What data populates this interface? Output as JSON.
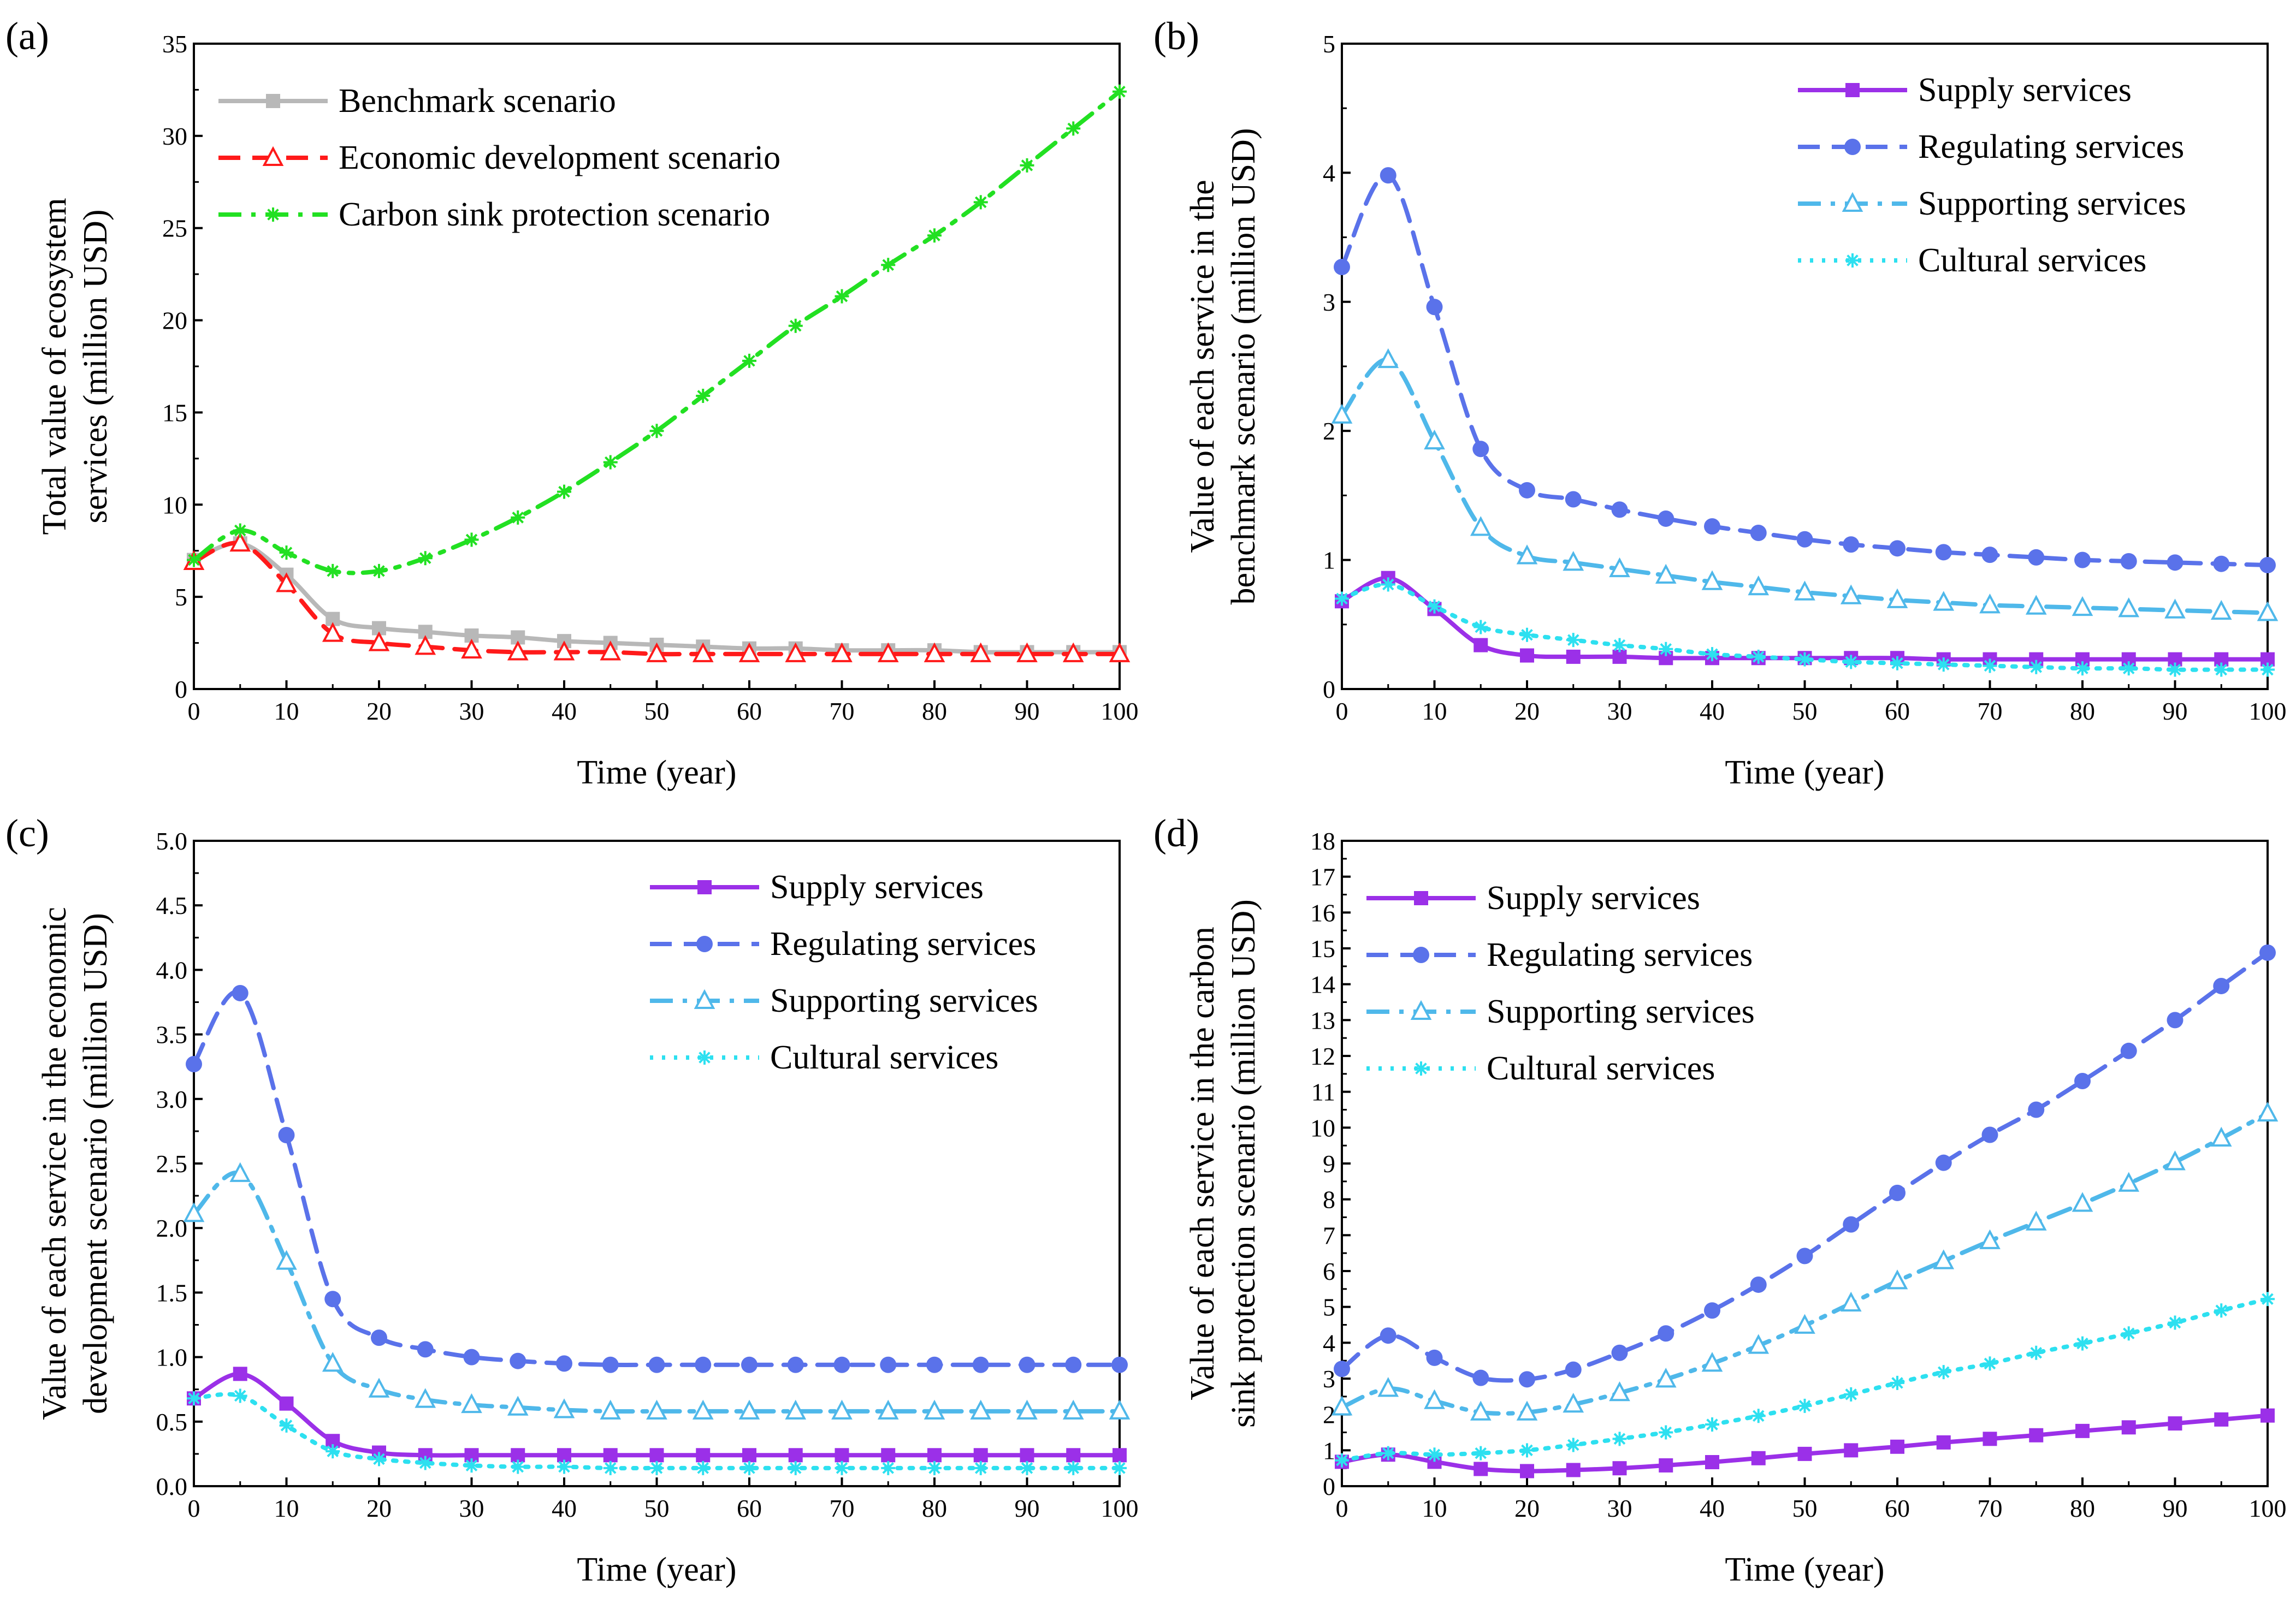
{
  "chart_data": [
    {
      "id": "a",
      "type": "line",
      "panel_label": "(a)",
      "xlabel": "Time (year)",
      "ylabel": [
        "Total value of ecosystem",
        "services (million USD)"
      ],
      "xlim": [
        0,
        100
      ],
      "ylim": [
        0,
        35
      ],
      "xticks": [
        0,
        10,
        20,
        30,
        40,
        50,
        60,
        70,
        80,
        90,
        100
      ],
      "yticks": [
        0,
        5,
        10,
        15,
        20,
        25,
        30,
        35
      ],
      "ytick_decimals": 0,
      "legend_position": "top-left",
      "x": [
        0,
        5,
        10,
        15,
        20,
        25,
        30,
        35,
        40,
        45,
        50,
        55,
        60,
        65,
        70,
        75,
        80,
        85,
        90,
        95,
        100
      ],
      "series": [
        {
          "name": "Benchmark scenario",
          "color": "#b8b8b8",
          "marker": "square",
          "dash": "solid",
          "values": [
            7.0,
            7.9,
            6.2,
            3.8,
            3.3,
            3.1,
            2.9,
            2.8,
            2.6,
            2.5,
            2.4,
            2.3,
            2.2,
            2.2,
            2.1,
            2.1,
            2.1,
            2.0,
            2.0,
            2.0,
            2.0
          ]
        },
        {
          "name": "Economic development scenario",
          "color": "#ff1a1a",
          "marker": "triangle-open",
          "dash": "dash",
          "values": [
            6.9,
            7.9,
            5.7,
            3.0,
            2.5,
            2.3,
            2.1,
            2.0,
            2.0,
            2.0,
            1.9,
            1.9,
            1.9,
            1.9,
            1.9,
            1.9,
            1.9,
            1.9,
            1.9,
            1.9,
            1.9
          ]
        },
        {
          "name": "Carbon sink protection scenario",
          "color": "#22e022",
          "marker": "asterisk",
          "dash": "dashdot",
          "values": [
            7.0,
            8.6,
            7.4,
            6.4,
            6.4,
            7.1,
            8.1,
            9.3,
            10.7,
            12.3,
            14.0,
            15.9,
            17.8,
            19.7,
            21.3,
            23.0,
            24.6,
            26.4,
            28.4,
            30.4,
            32.4
          ]
        }
      ]
    },
    {
      "id": "b",
      "type": "line",
      "panel_label": "(b)",
      "xlabel": "Time (year)",
      "ylabel": [
        "Value of each service in the",
        "benchmark scenario (million USD)"
      ],
      "xlim": [
        0,
        100
      ],
      "ylim": [
        0,
        5
      ],
      "xticks": [
        0,
        10,
        20,
        30,
        40,
        50,
        60,
        70,
        80,
        90,
        100
      ],
      "yticks": [
        0,
        1,
        2,
        3,
        4,
        5
      ],
      "ytick_decimals": 0,
      "legend_position": "top-right",
      "x": [
        0,
        5,
        10,
        15,
        20,
        25,
        30,
        35,
        40,
        45,
        50,
        55,
        60,
        65,
        70,
        75,
        80,
        85,
        90,
        95,
        100
      ],
      "series": [
        {
          "name": "Supply services",
          "color": "#9b30e8",
          "marker": "square",
          "dash": "solid",
          "values": [
            0.68,
            0.86,
            0.62,
            0.34,
            0.26,
            0.25,
            0.25,
            0.24,
            0.24,
            0.24,
            0.24,
            0.24,
            0.24,
            0.23,
            0.23,
            0.23,
            0.23,
            0.23,
            0.23,
            0.23,
            0.23
          ]
        },
        {
          "name": "Regulating services",
          "color": "#5a72ea",
          "marker": "circle",
          "dash": "dash",
          "values": [
            3.27,
            3.98,
            2.96,
            1.86,
            1.54,
            1.47,
            1.39,
            1.32,
            1.26,
            1.21,
            1.16,
            1.12,
            1.09,
            1.06,
            1.04,
            1.02,
            1.0,
            0.99,
            0.98,
            0.97,
            0.96
          ]
        },
        {
          "name": "Supporting services",
          "color": "#4fb8ea",
          "marker": "triangle-open",
          "dash": "dashdot",
          "values": [
            2.12,
            2.55,
            1.92,
            1.25,
            1.03,
            0.98,
            0.93,
            0.88,
            0.83,
            0.79,
            0.75,
            0.72,
            0.69,
            0.67,
            0.65,
            0.64,
            0.63,
            0.62,
            0.61,
            0.6,
            0.59
          ]
        },
        {
          "name": "Cultural services",
          "color": "#2de0f0",
          "marker": "asterisk",
          "dash": "dot",
          "values": [
            0.7,
            0.81,
            0.64,
            0.48,
            0.42,
            0.38,
            0.34,
            0.31,
            0.27,
            0.25,
            0.23,
            0.21,
            0.2,
            0.19,
            0.18,
            0.17,
            0.16,
            0.16,
            0.15,
            0.15,
            0.15
          ]
        }
      ]
    },
    {
      "id": "c",
      "type": "line",
      "panel_label": "(c)",
      "xlabel": "Time (year)",
      "ylabel": [
        "Value of each service in the economic",
        "development scenario (million USD)"
      ],
      "xlim": [
        0,
        100
      ],
      "ylim": [
        0,
        5
      ],
      "xticks": [
        0,
        10,
        20,
        30,
        40,
        50,
        60,
        70,
        80,
        90,
        100
      ],
      "yticks": [
        0,
        0.5,
        1.0,
        1.5,
        2.0,
        2.5,
        3.0,
        3.5,
        4.0,
        4.5,
        5.0
      ],
      "ytick_decimals": 1,
      "legend_position": "top-right",
      "x": [
        0,
        5,
        10,
        15,
        20,
        25,
        30,
        35,
        40,
        45,
        50,
        55,
        60,
        65,
        70,
        75,
        80,
        85,
        90,
        95,
        100
      ],
      "series": [
        {
          "name": "Supply services",
          "color": "#9b30e8",
          "marker": "square",
          "dash": "solid",
          "values": [
            0.68,
            0.87,
            0.64,
            0.35,
            0.26,
            0.24,
            0.24,
            0.24,
            0.24,
            0.24,
            0.24,
            0.24,
            0.24,
            0.24,
            0.24,
            0.24,
            0.24,
            0.24,
            0.24,
            0.24,
            0.24
          ]
        },
        {
          "name": "Regulating services",
          "color": "#5a72ea",
          "marker": "circle",
          "dash": "dash",
          "values": [
            3.27,
            3.82,
            2.72,
            1.45,
            1.15,
            1.06,
            1.0,
            0.97,
            0.95,
            0.94,
            0.94,
            0.94,
            0.94,
            0.94,
            0.94,
            0.94,
            0.94,
            0.94,
            0.94,
            0.94,
            0.94
          ]
        },
        {
          "name": "Supporting services",
          "color": "#4fb8ea",
          "marker": "triangle-open",
          "dash": "dashdot",
          "values": [
            2.11,
            2.42,
            1.74,
            0.95,
            0.75,
            0.67,
            0.63,
            0.61,
            0.59,
            0.58,
            0.58,
            0.58,
            0.58,
            0.58,
            0.58,
            0.58,
            0.58,
            0.58,
            0.58,
            0.58,
            0.58
          ]
        },
        {
          "name": "Cultural services",
          "color": "#2de0f0",
          "marker": "asterisk",
          "dash": "dot",
          "values": [
            0.68,
            0.7,
            0.47,
            0.27,
            0.21,
            0.18,
            0.16,
            0.15,
            0.15,
            0.14,
            0.14,
            0.14,
            0.14,
            0.14,
            0.14,
            0.14,
            0.14,
            0.14,
            0.14,
            0.14,
            0.14
          ]
        }
      ]
    },
    {
      "id": "d",
      "type": "line",
      "panel_label": "(d)",
      "xlabel": "Time (year)",
      "ylabel": [
        "Value of each service in the carbon",
        "sink protection scenario (million USD)"
      ],
      "xlim": [
        0,
        100
      ],
      "ylim": [
        0,
        18
      ],
      "xticks": [
        0,
        10,
        20,
        30,
        40,
        50,
        60,
        70,
        80,
        90,
        100
      ],
      "yticks": [
        0,
        1,
        2,
        3,
        4,
        5,
        6,
        7,
        8,
        9,
        10,
        11,
        12,
        13,
        14,
        15,
        16,
        17,
        18
      ],
      "ytick_decimals": 0,
      "legend_position": "top-left",
      "x": [
        0,
        5,
        10,
        15,
        20,
        25,
        30,
        35,
        40,
        45,
        50,
        55,
        60,
        65,
        70,
        75,
        80,
        85,
        90,
        95,
        100
      ],
      "series": [
        {
          "name": "Supply services",
          "color": "#9b30e8",
          "marker": "square",
          "dash": "solid",
          "values": [
            0.68,
            0.88,
            0.68,
            0.48,
            0.42,
            0.45,
            0.5,
            0.58,
            0.67,
            0.78,
            0.9,
            1.0,
            1.1,
            1.22,
            1.32,
            1.42,
            1.54,
            1.64,
            1.75,
            1.86,
            1.97
          ]
        },
        {
          "name": "Regulating services",
          "color": "#5a72ea",
          "marker": "circle",
          "dash": "dash",
          "values": [
            3.27,
            4.2,
            3.58,
            3.02,
            2.98,
            3.25,
            3.72,
            4.26,
            4.9,
            5.62,
            6.42,
            7.3,
            8.18,
            9.02,
            9.8,
            10.5,
            11.3,
            12.14,
            13.0,
            13.95,
            14.88
          ]
        },
        {
          "name": "Supporting services",
          "color": "#4fb8ea",
          "marker": "triangle-open",
          "dash": "dashdot",
          "values": [
            2.2,
            2.72,
            2.38,
            2.06,
            2.06,
            2.28,
            2.6,
            2.98,
            3.42,
            3.92,
            4.48,
            5.1,
            5.72,
            6.28,
            6.84,
            7.36,
            7.88,
            8.44,
            9.04,
            9.7,
            10.4
          ]
        },
        {
          "name": "Cultural services",
          "color": "#2de0f0",
          "marker": "asterisk",
          "dash": "dot",
          "values": [
            0.72,
            0.92,
            0.88,
            0.92,
            1.0,
            1.15,
            1.32,
            1.5,
            1.72,
            1.96,
            2.24,
            2.56,
            2.88,
            3.18,
            3.42,
            3.72,
            3.98,
            4.26,
            4.56,
            4.9,
            5.22
          ]
        }
      ]
    }
  ]
}
